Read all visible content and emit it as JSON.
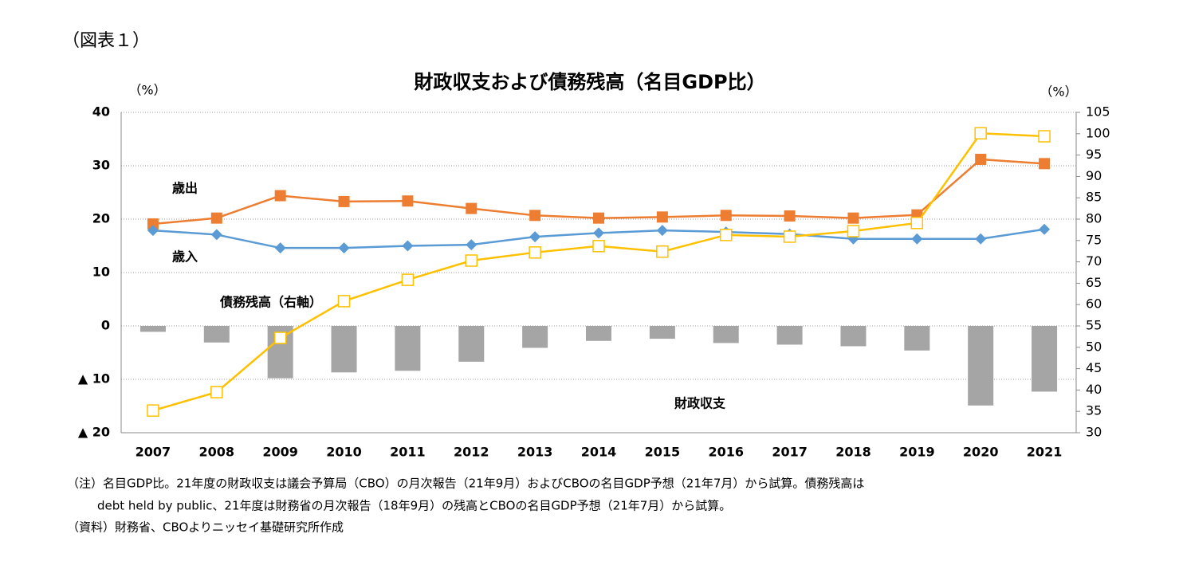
{
  "label": "（図表１）",
  "chart_data": {
    "type": "combo",
    "title": "財政収支および債務残高（名目GDP比）",
    "y_label": "（%）",
    "y2_label": "（%）",
    "categories": [
      "2007",
      "2008",
      "2009",
      "2010",
      "2011",
      "2012",
      "2013",
      "2014",
      "2015",
      "2016",
      "2017",
      "2018",
      "2019",
      "2020",
      "2021"
    ],
    "ylim": [
      -20,
      40
    ],
    "yticks": [
      {
        "value": -20,
        "label": "▲ 20"
      },
      {
        "value": -10,
        "label": "▲ 10"
      },
      0,
      10,
      20,
      30,
      40
    ],
    "y2lim": [
      30,
      105
    ],
    "y2ticks": [
      30,
      35,
      40,
      45,
      50,
      55,
      60,
      65,
      70,
      75,
      80,
      85,
      90,
      95,
      100,
      105
    ],
    "grid": true,
    "series": [
      {
        "name": "財政収支",
        "type": "bar",
        "color": "#a5a5a5",
        "values": [
          -1.1,
          -3.1,
          -9.8,
          -8.7,
          -8.4,
          -6.7,
          -4.1,
          -2.8,
          -2.4,
          -3.2,
          -3.5,
          -3.8,
          -4.6,
          -14.9,
          -12.3
        ]
      },
      {
        "name": "歳出",
        "type": "line",
        "marker": "square",
        "color": "#ed7d31",
        "values": [
          19.1,
          20.2,
          24.4,
          23.3,
          23.4,
          22.0,
          20.7,
          20.2,
          20.4,
          20.7,
          20.6,
          20.2,
          20.8,
          31.2,
          30.4
        ]
      },
      {
        "name": "歳入",
        "type": "line",
        "marker": "diamond",
        "color": "#5b9bd5",
        "values": [
          17.9,
          17.1,
          14.6,
          14.6,
          15.0,
          15.2,
          16.7,
          17.4,
          17.9,
          17.6,
          17.2,
          16.3,
          16.3,
          16.3,
          18.1
        ]
      },
      {
        "name": "債務残高（右軸）",
        "type": "line",
        "marker": "open-square",
        "color": "#ffc000",
        "axis": "y2",
        "values": [
          35.2,
          39.5,
          52.2,
          60.8,
          65.8,
          70.3,
          72.2,
          73.7,
          72.4,
          76.3,
          75.9,
          77.2,
          79.1,
          100.1,
          99.4
        ]
      }
    ]
  },
  "notes": [
    "（注）名目GDP比。21年度の財政収支は議会予算局（CBO）の月次報告（21年9月）およびCBOの名目GDP予想（21年7月）から試算。債務残高は",
    "debt held by public、21年度は財務省の月次報告（18年9月）の残高とCBOの名目GDP予想（21年7月）から試算。",
    "（資料）財務省、CBOよりニッセイ基礎研究所作成"
  ]
}
